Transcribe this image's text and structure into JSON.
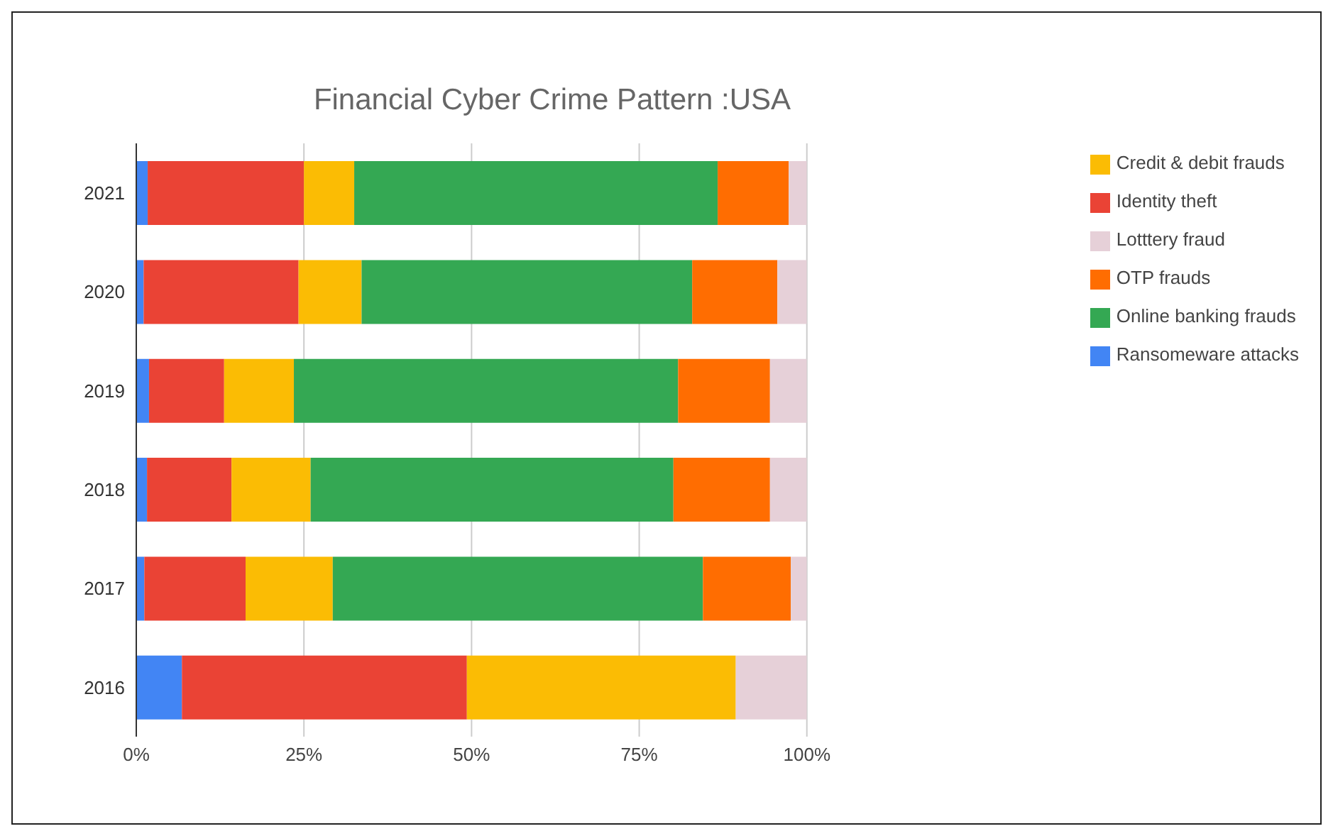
{
  "chart_data": {
    "type": "bar",
    "orientation": "horizontal",
    "stacked": true,
    "title": "Financial Cyber Crime Pattern :USA",
    "categories": [
      "2021",
      "2020",
      "2019",
      "2018",
      "2017",
      "2016"
    ],
    "series": [
      {
        "name": "Ransomeware attacks",
        "color": "#4285f4",
        "values": [
          1.7,
          1.1,
          1.9,
          1.6,
          1.2,
          6.8
        ]
      },
      {
        "name": "Identity theft",
        "color": "#ea4335",
        "values": [
          23.3,
          23.1,
          11.2,
          12.6,
          15.1,
          42.5
        ]
      },
      {
        "name": "Credit & debit frauds",
        "color": "#fbbc04",
        "values": [
          7.5,
          9.4,
          10.4,
          11.8,
          13.0,
          40.1
        ]
      },
      {
        "name": "Online banking frauds",
        "color": "#34a853",
        "values": [
          54.2,
          49.3,
          57.3,
          54.1,
          55.2,
          null
        ]
      },
      {
        "name": "OTP frauds",
        "color": "#ff6d01",
        "values": [
          10.6,
          12.7,
          13.7,
          14.4,
          13.1,
          null
        ]
      },
      {
        "name": "Lotttery fraud",
        "color": "#e6d0d8",
        "values": [
          2.7,
          4.4,
          5.5,
          5.5,
          2.4,
          10.6
        ]
      }
    ],
    "xlim": [
      0,
      100
    ],
    "xticks": [
      {
        "value": 0,
        "label": "0%"
      },
      {
        "value": 25,
        "label": "25%"
      },
      {
        "value": 50,
        "label": "50%"
      },
      {
        "value": 75,
        "label": "75%"
      },
      {
        "value": 100,
        "label": "100%"
      }
    ],
    "grid": "x",
    "legend": "right"
  }
}
